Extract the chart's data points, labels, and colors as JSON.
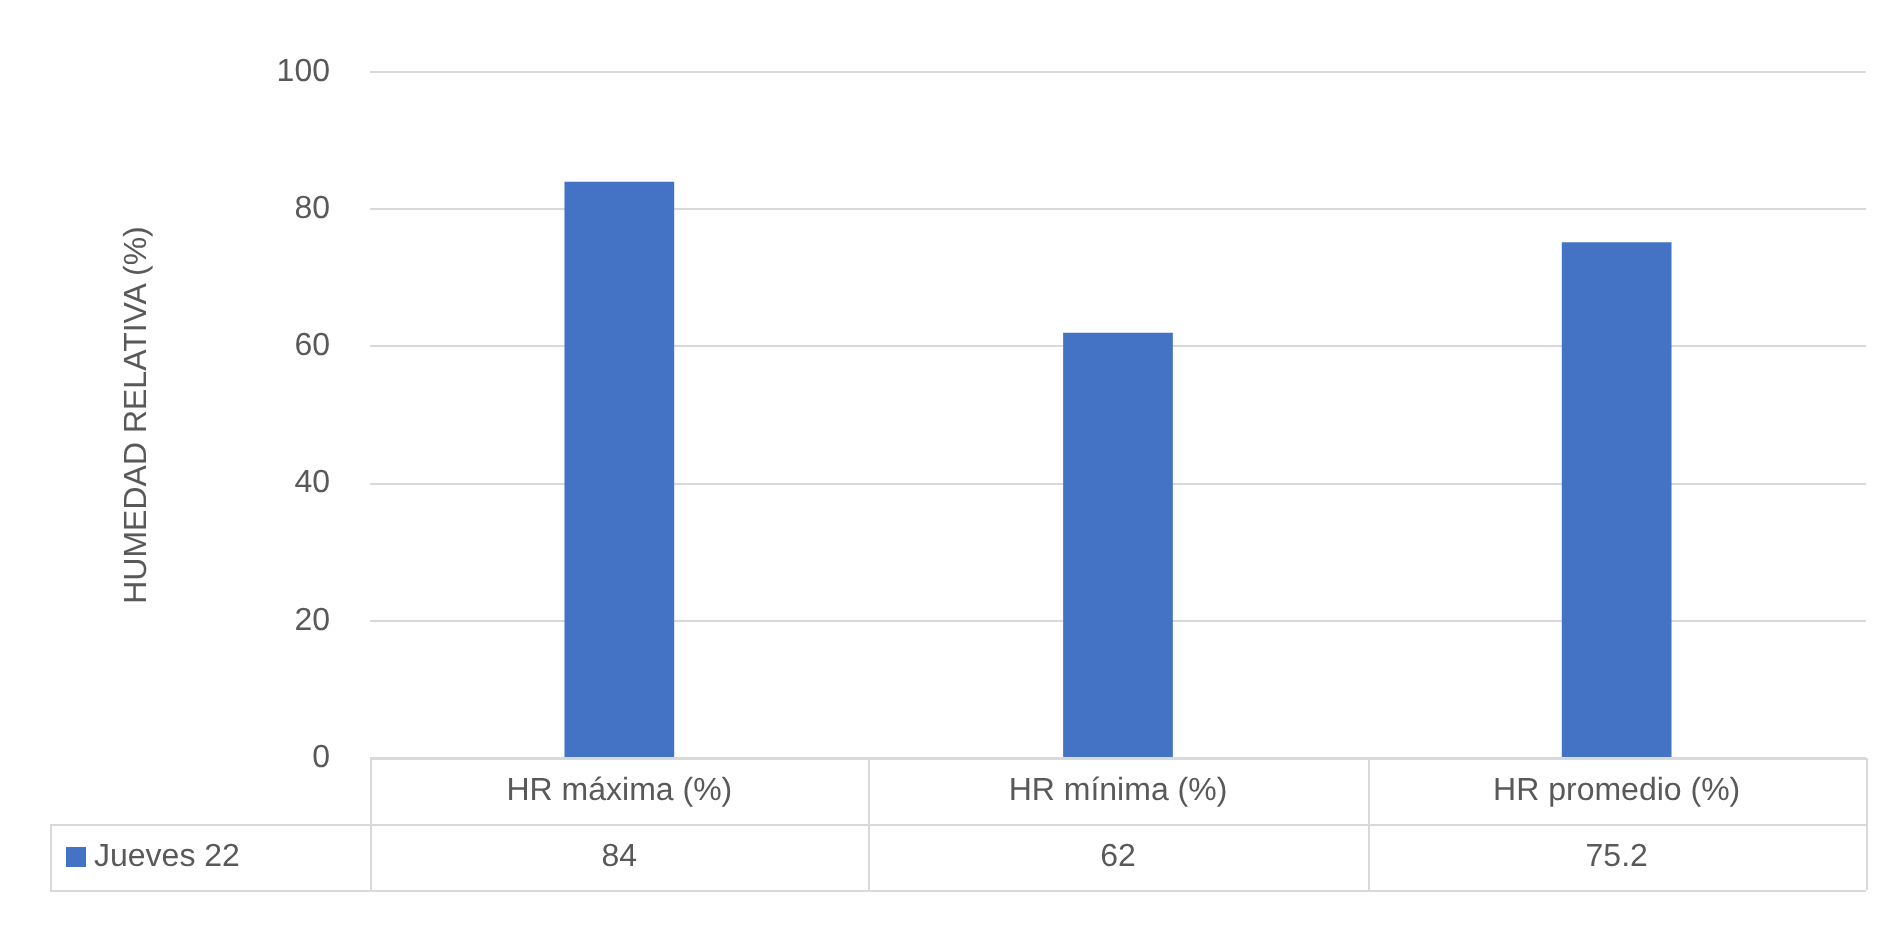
{
  "chart_data": {
    "type": "bar",
    "ylabel": "HUMEDAD RELATIVA (%)",
    "categories": [
      "HR máxima (%)",
      "HR mínima (%)",
      "HR promedio (%)"
    ],
    "series": [
      {
        "name": "Jueves 22",
        "color": "#4472c4",
        "values": [
          84,
          62,
          75.2
        ]
      }
    ],
    "ylim": [
      0,
      100
    ],
    "yticks": [
      0,
      20,
      40,
      60,
      80,
      100
    ],
    "grid": "y",
    "data_labels": true
  }
}
